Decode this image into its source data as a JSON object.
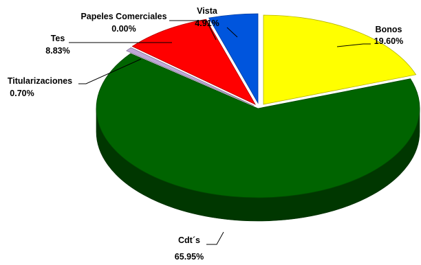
{
  "chart_data": {
    "type": "pie",
    "style": "3d-exploded",
    "slices": [
      {
        "name": "Bonos",
        "value": 19.6,
        "label": "19.60%",
        "color": "#FFFF00"
      },
      {
        "name": "Cdt´s",
        "value": 65.95,
        "label": "65.95%",
        "color": "#006400"
      },
      {
        "name": "Titularizaciones",
        "value": 0.7,
        "label": "0.70%",
        "color": "#C0A8D8"
      },
      {
        "name": "Tes",
        "value": 8.83,
        "label": "8.83%",
        "color": "#FF0000"
      },
      {
        "name": "Papeles Comerciales",
        "value": 0.0,
        "label": "0.00%",
        "color": "#888888"
      },
      {
        "name": "Vista",
        "value": 4.91,
        "label": "4.91%",
        "color": "#0055DD"
      }
    ]
  }
}
